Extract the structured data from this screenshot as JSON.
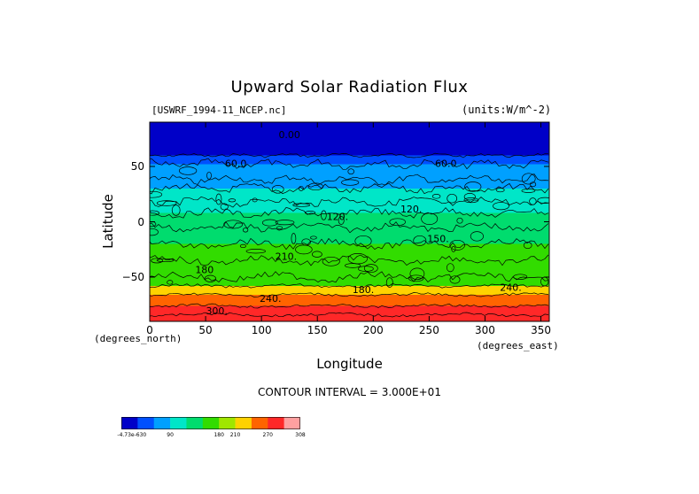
{
  "chart_data": {
    "type": "heatmap",
    "title": "Upward Solar Radiation Flux",
    "dataset": "[USWRF_1994-11_NCEP.nc]",
    "units": "(units:W/m^-2)",
    "xlabel": "Longitude",
    "ylabel": "Latitude",
    "x_units": "(degrees_east)",
    "y_units": "(degrees_north)",
    "xlim": [
      0,
      357.5
    ],
    "ylim": [
      -90,
      90
    ],
    "x_ticks": [
      0,
      50,
      100,
      150,
      200,
      250,
      300,
      350
    ],
    "y_ticks": [
      -50,
      0,
      50
    ],
    "contour_interval_label": "CONTOUR INTERVAL = 3.000E+01",
    "colorbar": {
      "bounds": [
        -4.73e-06,
        30,
        60,
        90,
        120,
        150,
        180,
        210,
        240,
        270,
        300,
        308
      ],
      "tick_labels": [
        "-4.73e-630",
        "90",
        "180",
        "210",
        "270",
        "308"
      ],
      "colors": [
        "#0000c8",
        "#0050ff",
        "#00a0ff",
        "#00e6c8",
        "#00dc6e",
        "#32dc00",
        "#a0e600",
        "#ffd200",
        "#ff6400",
        "#ff2828",
        "#ffa0a0"
      ]
    },
    "zonal_bands": [
      {
        "lat_top": 90,
        "lat_bottom": 81,
        "value": 0
      },
      {
        "lat_top": 81,
        "lat_bottom": 74,
        "value": 25
      },
      {
        "lat_top": 74,
        "lat_bottom": 60,
        "value": 25
      },
      {
        "lat_top": 60,
        "lat_bottom": 52,
        "value": 55
      },
      {
        "lat_top": 52,
        "lat_bottom": 30,
        "value": 75
      },
      {
        "lat_top": 30,
        "lat_bottom": 8,
        "value": 105
      },
      {
        "lat_top": 8,
        "lat_bottom": -20,
        "value": 135
      },
      {
        "lat_top": -20,
        "lat_bottom": -58,
        "value": 165
      },
      {
        "lat_top": -58,
        "lat_bottom": -66,
        "value": 225
      },
      {
        "lat_top": -66,
        "lat_bottom": -76,
        "value": 255
      },
      {
        "lat_top": -76,
        "lat_bottom": -84,
        "value": 285
      },
      {
        "lat_top": -84,
        "lat_bottom": -90,
        "value": 290
      }
    ],
    "contour_labels": [
      {
        "text": "0.00",
        "lon": 125,
        "lat": 78
      },
      {
        "text": "60.0",
        "lon": 77,
        "lat": 52
      },
      {
        "text": "60.0",
        "lon": 265,
        "lat": 52
      },
      {
        "text": "120.",
        "lon": 168,
        "lat": 4
      },
      {
        "text": "120.",
        "lon": 234,
        "lat": 11
      },
      {
        "text": "150.",
        "lon": 258,
        "lat": -16
      },
      {
        "text": "210.",
        "lon": 122,
        "lat": -32
      },
      {
        "text": "180",
        "lon": 49,
        "lat": -44
      },
      {
        "text": "180.",
        "lon": 191,
        "lat": -62
      },
      {
        "text": "240.",
        "lon": 323,
        "lat": -60
      },
      {
        "text": "240.",
        "lon": 108,
        "lat": -70
      },
      {
        "text": "300.",
        "lon": 60,
        "lat": -81
      }
    ]
  }
}
